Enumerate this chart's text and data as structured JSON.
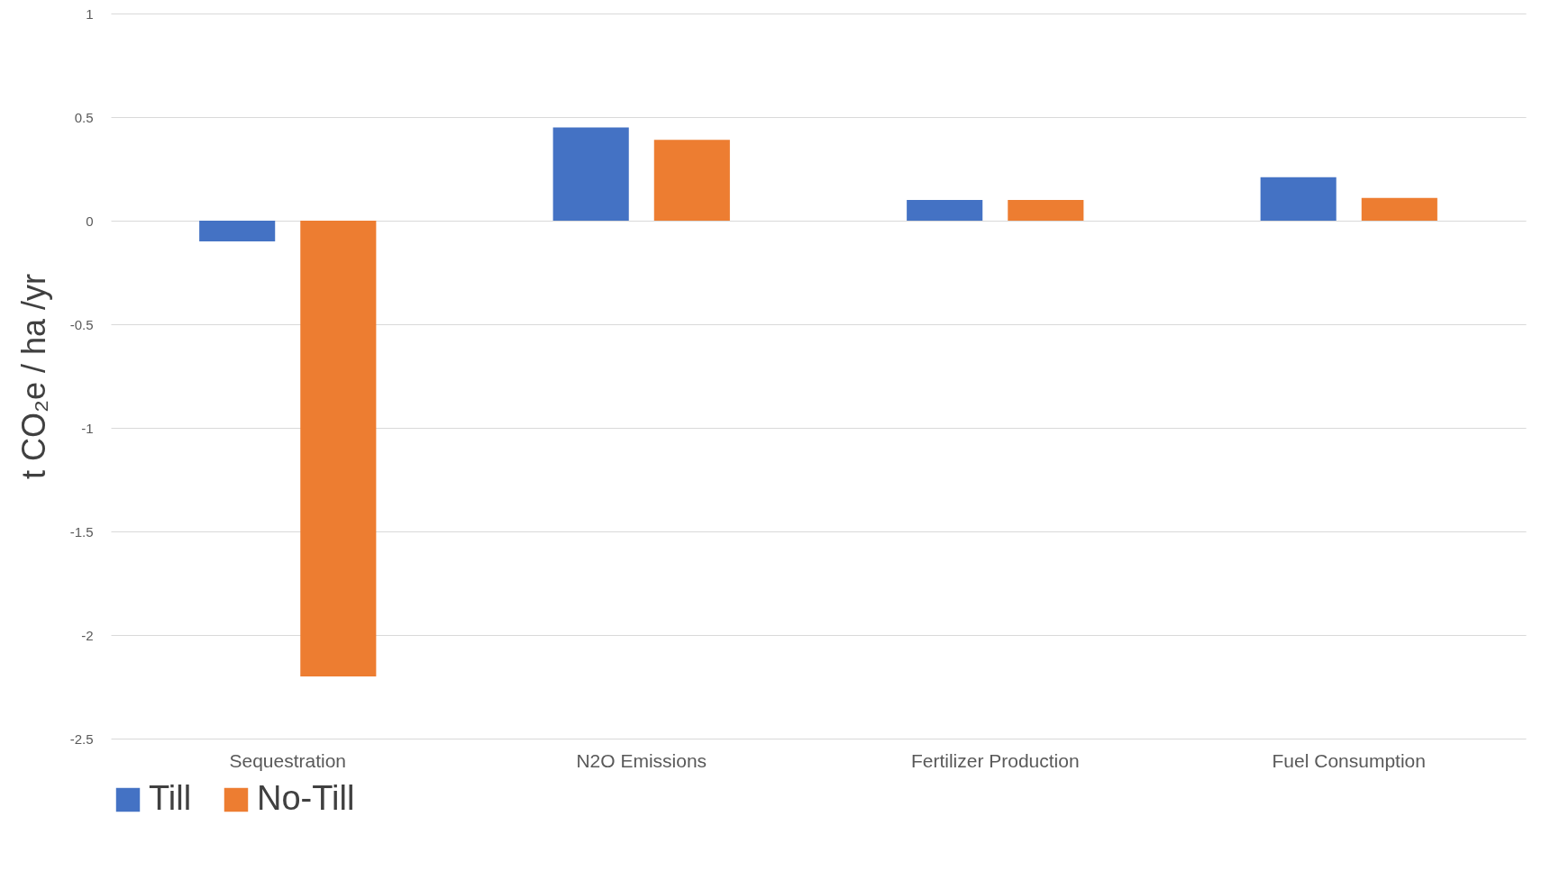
{
  "chart_data": {
    "type": "bar",
    "ylabel": "t CO₂e / ha /yr",
    "categories": [
      "Sequestration",
      "N2O Emissions",
      "Fertilizer Production",
      "Fuel Consumption"
    ],
    "series": [
      {
        "name": "Till",
        "color": "#4472c4",
        "values": [
          -0.1,
          0.45,
          0.1,
          0.21
        ]
      },
      {
        "name": "No-Till",
        "color": "#ed7d31",
        "values": [
          -2.2,
          0.39,
          0.1,
          0.11
        ]
      }
    ],
    "ylim": [
      -2.5,
      1
    ],
    "yticks": [
      -2.5,
      -2,
      -1.5,
      -1,
      -0.5,
      0,
      0.5,
      1
    ],
    "grid": "y",
    "legend": "bottom"
  }
}
